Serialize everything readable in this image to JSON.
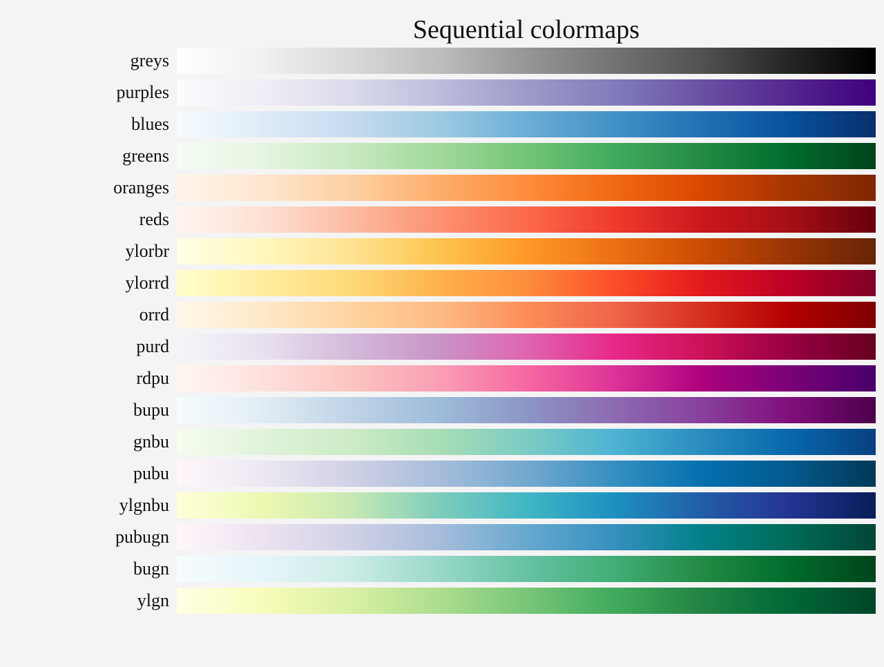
{
  "chart_data": {
    "type": "heatmap",
    "title": "Sequential colormaps",
    "colormaps": [
      {
        "name": "greys",
        "colors": [
          "#ffffff",
          "#f0f0f0",
          "#d9d9d9",
          "#bdbdbd",
          "#969696",
          "#737373",
          "#525252",
          "#252525",
          "#000000"
        ]
      },
      {
        "name": "purples",
        "colors": [
          "#fcfbfd",
          "#efedf5",
          "#dadaeb",
          "#bcbddc",
          "#9e9ac8",
          "#807dba",
          "#6a51a3",
          "#54278f",
          "#3f007d"
        ]
      },
      {
        "name": "blues",
        "colors": [
          "#f7fbff",
          "#deebf7",
          "#c6dbef",
          "#9ecae1",
          "#6baed6",
          "#4292c6",
          "#2171b5",
          "#08519c",
          "#08306b"
        ]
      },
      {
        "name": "greens",
        "colors": [
          "#f7fcf5",
          "#e5f5e0",
          "#c7e9c0",
          "#a1d99b",
          "#74c476",
          "#41ab5d",
          "#238b45",
          "#006d2c",
          "#00441b"
        ]
      },
      {
        "name": "oranges",
        "colors": [
          "#fff5eb",
          "#fee6ce",
          "#fdd0a2",
          "#fdae6b",
          "#fd8d3c",
          "#f16913",
          "#d94801",
          "#a63603",
          "#7f2704"
        ]
      },
      {
        "name": "reds",
        "colors": [
          "#fff5f0",
          "#fee0d2",
          "#fcbba1",
          "#fc9272",
          "#fb6a4a",
          "#ef3b2c",
          "#cb181d",
          "#a50f15",
          "#67000d"
        ]
      },
      {
        "name": "ylorbr",
        "colors": [
          "#ffffe5",
          "#fff7bc",
          "#fee391",
          "#fec44f",
          "#fe9929",
          "#ec7014",
          "#cc4c02",
          "#993404",
          "#662506"
        ]
      },
      {
        "name": "ylorrd",
        "colors": [
          "#ffffcc",
          "#ffeda0",
          "#fed976",
          "#feb24c",
          "#fd8d3c",
          "#fc4e2a",
          "#e31a1c",
          "#bd0026",
          "#800026"
        ]
      },
      {
        "name": "orrd",
        "colors": [
          "#fff7ec",
          "#fee8c8",
          "#fdd49e",
          "#fdbb84",
          "#fc8d59",
          "#ef6548",
          "#d7301f",
          "#b30000",
          "#7f0000"
        ]
      },
      {
        "name": "purd",
        "colors": [
          "#f7f4f9",
          "#e7e1ef",
          "#d4b9da",
          "#c994c7",
          "#df65b0",
          "#e7298a",
          "#ce1256",
          "#980043",
          "#67001f"
        ]
      },
      {
        "name": "rdpu",
        "colors": [
          "#fff7f3",
          "#fde0dd",
          "#fcc5c0",
          "#fa9fb5",
          "#f768a1",
          "#dd3497",
          "#ae017e",
          "#7a0177",
          "#49006a"
        ]
      },
      {
        "name": "bupu",
        "colors": [
          "#f7fcfd",
          "#e0ecf4",
          "#bfd3e6",
          "#9ebcda",
          "#8c96c6",
          "#8c6bb1",
          "#88419d",
          "#810f7c",
          "#4d004b"
        ]
      },
      {
        "name": "gnbu",
        "colors": [
          "#f7fcf0",
          "#e0f3db",
          "#ccebc5",
          "#a8ddb5",
          "#7bccc4",
          "#4eb3d3",
          "#2b8cbe",
          "#0868ac",
          "#084081"
        ]
      },
      {
        "name": "pubu",
        "colors": [
          "#fff7fb",
          "#ece7f2",
          "#d0d1e6",
          "#a6bddb",
          "#74a9cf",
          "#3690c0",
          "#0570b0",
          "#045a8d",
          "#023858"
        ]
      },
      {
        "name": "ylgnbu",
        "colors": [
          "#ffffd9",
          "#edf8b1",
          "#c7e9b4",
          "#7fcdbb",
          "#41b6c4",
          "#1d91c0",
          "#225ea8",
          "#253494",
          "#081d58"
        ]
      },
      {
        "name": "pubugn",
        "colors": [
          "#fff7fb",
          "#ece2f0",
          "#d0d1e6",
          "#a6bddb",
          "#67a9cf",
          "#3690c0",
          "#02818a",
          "#016c59",
          "#014636"
        ]
      },
      {
        "name": "bugn",
        "colors": [
          "#f7fcfd",
          "#e5f5f9",
          "#ccece6",
          "#99d8c9",
          "#66c2a4",
          "#41ae76",
          "#238b45",
          "#006d2c",
          "#00441b"
        ]
      },
      {
        "name": "ylgn",
        "colors": [
          "#ffffe5",
          "#f7fcb9",
          "#d9f0a3",
          "#addd8e",
          "#78c679",
          "#41ab5d",
          "#238443",
          "#006837",
          "#004529"
        ]
      }
    ]
  }
}
